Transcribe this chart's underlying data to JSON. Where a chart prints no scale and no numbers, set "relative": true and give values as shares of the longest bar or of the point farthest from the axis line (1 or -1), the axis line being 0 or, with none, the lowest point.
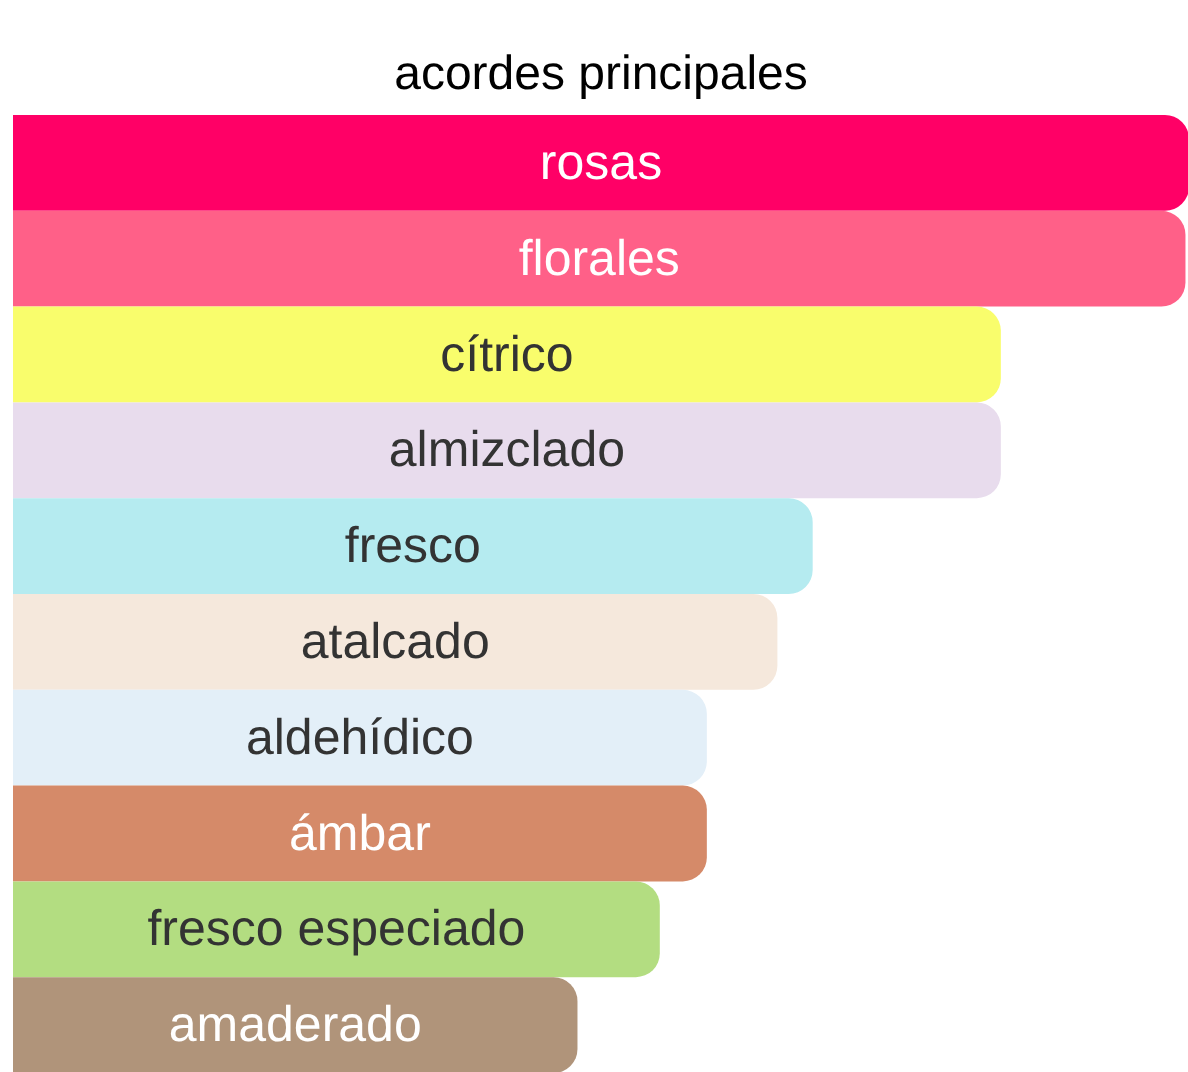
{
  "chart_data": {
    "type": "bar",
    "orientation": "horizontal",
    "relative": true,
    "title": "acordes principales",
    "categories": [
      "rosas",
      "florales",
      "cítrico",
      "almizclado",
      "fresco",
      "atalcado",
      "aldehídico",
      "ámbar",
      "fresco especiado",
      "amaderado"
    ],
    "values": [
      1,
      0.997,
      0.84,
      0.84,
      0.68,
      0.65,
      0.59,
      0.59,
      0.55,
      0.48
    ],
    "colors": [
      "#ff0066",
      "#ff6088",
      "#f9fd6c",
      "#e8dced",
      "#b5ebf0",
      "#f5e8dc",
      "#e3eff8",
      "#d58a69",
      "#b3dd81",
      "#b0947a"
    ]
  }
}
